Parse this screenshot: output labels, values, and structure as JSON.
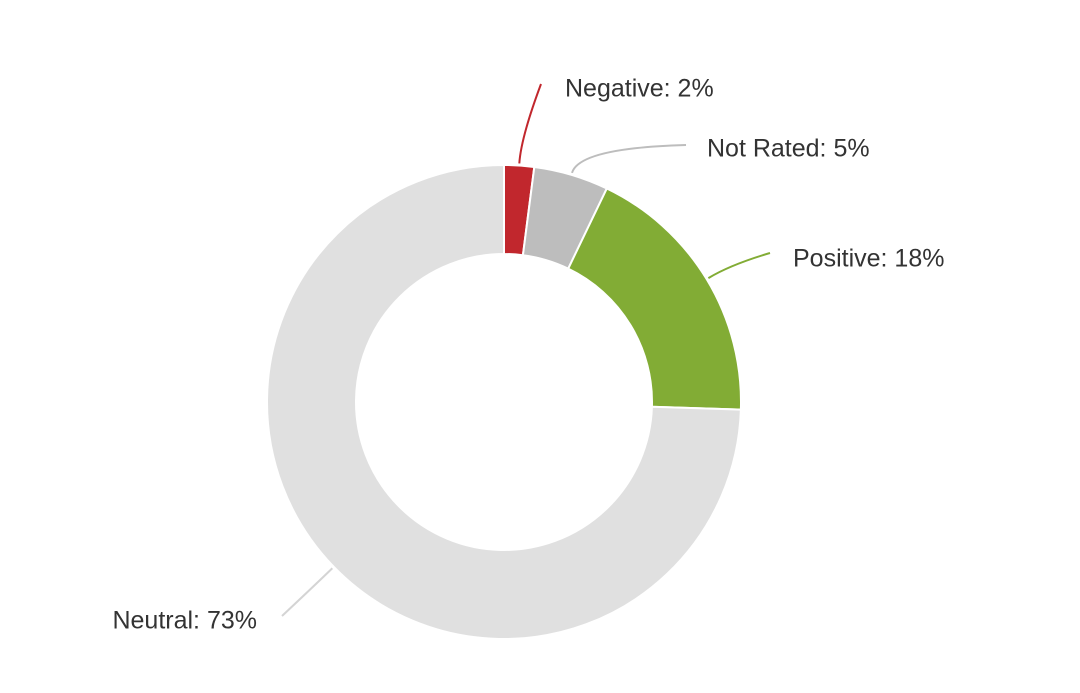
{
  "chart_data": {
    "type": "donut",
    "values": [
      2,
      5,
      18,
      73
    ],
    "value_labels": [
      "Negative: 2%",
      "Not Rated: 5%",
      "Positive: 18%",
      "Neutral: 73%"
    ],
    "colors": [
      "#c1272d",
      "#bdbdbd",
      "#82ac35",
      "#e0e0e0"
    ]
  }
}
